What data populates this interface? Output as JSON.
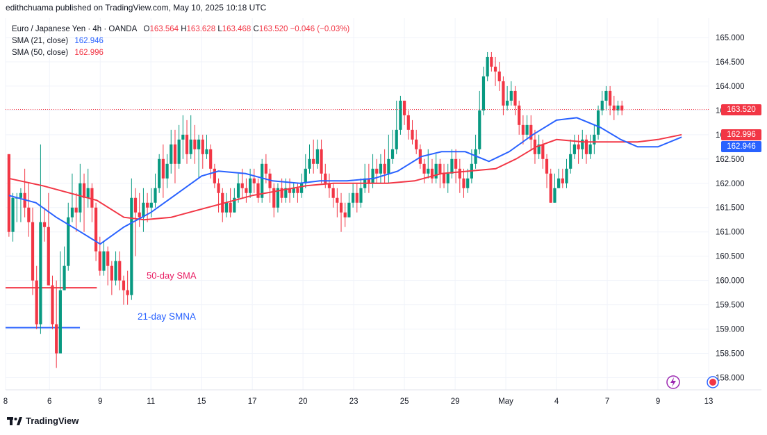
{
  "header": {
    "published_line": "edithchuama published on TradingView.com, May 10, 2025 10:18 UTC"
  },
  "legend": {
    "symbol": "Euro / Japanese Yen · 4h · OANDA",
    "o_label": "O",
    "o_value": "163.564",
    "h_label": "H",
    "h_value": "163.628",
    "l_label": "L",
    "l_value": "163.468",
    "c_label": "C",
    "c_value": "163.520",
    "change": "−0.046 (−0.03%)",
    "sma21_label": "SMA (21, close)",
    "sma21_value": "162.946",
    "sma50_label": "SMA (50, close)",
    "sma50_value": "162.996"
  },
  "annotations": {
    "sma50_text": "50-day SMA",
    "sma21_text": "21-day SMNA"
  },
  "price_tags": {
    "last": "163.520",
    "sma50": "162.996",
    "sma21": "162.946"
  },
  "footer": {
    "brand": "TradingView"
  },
  "colors": {
    "up": "#089981",
    "down": "#f23645",
    "sma21": "#2962ff",
    "sma50": "#f23645",
    "grid": "#f0f3fa"
  },
  "chart_data": {
    "type": "candlestick",
    "title": "Euro / Japanese Yen · 4h · OANDA",
    "y_ticks": [
      "165.000",
      "164.500",
      "164.000",
      "163.500",
      "163.000",
      "162.500",
      "162.000",
      "161.500",
      "161.000",
      "160.500",
      "160.000",
      "159.500",
      "159.000",
      "158.500",
      "158.000"
    ],
    "ylim": [
      157.75,
      165.4
    ],
    "x_ticks": [
      "8",
      "6",
      "9",
      "11",
      "15",
      "17",
      "20",
      "23",
      "25",
      "29",
      "May",
      "4",
      "7",
      "9",
      "13"
    ],
    "x_tick_index": [
      -1,
      12,
      27,
      42,
      57,
      72,
      87,
      102,
      117,
      132,
      147,
      162,
      177,
      192,
      207
    ],
    "x_index_range": [
      -1,
      207
    ],
    "candles": [
      [
        162.6,
        161.0,
        162.6,
        160.9
      ],
      [
        161.0,
        161.7,
        161.8,
        160.8
      ],
      [
        161.7,
        161.7,
        161.8,
        161.2
      ],
      [
        161.7,
        161.8,
        161.9,
        161.2
      ],
      [
        161.8,
        161.5,
        162.3,
        161.3
      ],
      [
        161.5,
        161.2,
        162.0,
        160.9
      ],
      [
        161.2,
        160.0,
        161.5,
        159.7
      ],
      [
        160.0,
        159.1,
        160.3,
        159.0
      ],
      [
        159.1,
        161.2,
        162.8,
        158.9
      ],
      [
        161.2,
        161.1,
        161.5,
        160.8
      ],
      [
        161.1,
        159.9,
        161.8,
        159.9
      ],
      [
        159.9,
        159.1,
        160.1,
        159.0
      ],
      [
        159.1,
        158.5,
        160.0,
        158.2
      ],
      [
        158.5,
        159.8,
        160.6,
        158.5
      ],
      [
        159.8,
        160.3,
        160.7,
        159.8
      ],
      [
        160.3,
        161.3,
        161.6,
        160.2
      ],
      [
        161.3,
        161.5,
        162.2,
        161.2
      ],
      [
        161.5,
        161.4,
        161.8,
        161.0
      ],
      [
        161.4,
        162.0,
        162.4,
        161.2
      ],
      [
        162.0,
        161.7,
        162.2,
        161.0
      ],
      [
        161.7,
        161.9,
        162.3,
        161.5
      ],
      [
        161.9,
        161.5,
        162.0,
        161.2
      ],
      [
        161.5,
        160.6,
        161.6,
        160.4
      ],
      [
        160.6,
        160.2,
        160.9,
        160.1
      ],
      [
        160.2,
        160.6,
        160.8,
        160.1
      ],
      [
        160.6,
        160.3,
        160.7,
        159.9
      ],
      [
        160.3,
        160.0,
        160.4,
        159.7
      ],
      [
        160.0,
        160.4,
        160.6,
        159.9
      ],
      [
        160.4,
        160.0,
        160.6,
        159.8
      ],
      [
        160.0,
        159.8,
        160.1,
        159.5
      ],
      [
        159.8,
        159.7,
        160.2,
        159.5
      ],
      [
        159.7,
        161.7,
        162.1,
        159.6
      ],
      [
        161.7,
        161.4,
        161.9,
        160.5
      ],
      [
        161.4,
        161.3,
        161.8,
        161.1
      ],
      [
        161.3,
        161.6,
        161.9,
        161.0
      ],
      [
        161.6,
        161.5,
        161.8,
        161.2
      ],
      [
        161.5,
        161.6,
        161.9,
        161.3
      ],
      [
        161.6,
        161.9,
        162.2,
        161.5
      ],
      [
        161.9,
        162.5,
        162.6,
        161.8
      ],
      [
        162.5,
        162.1,
        162.8,
        161.7
      ],
      [
        162.1,
        162.4,
        162.6,
        161.9
      ],
      [
        162.4,
        162.8,
        163.1,
        162.2
      ],
      [
        162.8,
        162.4,
        163.1,
        162.0
      ],
      [
        162.4,
        162.9,
        163.2,
        162.3
      ],
      [
        162.9,
        163.0,
        163.4,
        162.5
      ],
      [
        163.0,
        162.6,
        163.3,
        162.4
      ],
      [
        162.6,
        162.9,
        163.4,
        162.5
      ],
      [
        162.9,
        162.7,
        163.2,
        162.4
      ],
      [
        162.7,
        162.9,
        163.0,
        162.1
      ],
      [
        162.9,
        162.6,
        163.0,
        162.3
      ],
      [
        162.6,
        162.7,
        163.0,
        162.5
      ],
      [
        162.7,
        162.3,
        162.8,
        162.1
      ],
      [
        162.3,
        162.0,
        162.4,
        161.9
      ],
      [
        162.0,
        161.8,
        162.1,
        161.4
      ],
      [
        161.8,
        161.4,
        161.9,
        161.2
      ],
      [
        161.4,
        161.6,
        161.8,
        161.3
      ],
      [
        161.6,
        161.4,
        161.9,
        161.3
      ],
      [
        161.4,
        161.7,
        161.9,
        161.4
      ],
      [
        161.7,
        162.0,
        162.2,
        161.6
      ],
      [
        162.0,
        161.9,
        162.3,
        161.7
      ],
      [
        161.9,
        161.8,
        162.1,
        161.6
      ],
      [
        161.8,
        162.1,
        162.3,
        161.7
      ],
      [
        162.1,
        162.0,
        162.3,
        161.8
      ],
      [
        162.0,
        161.7,
        162.1,
        161.6
      ],
      [
        161.7,
        162.4,
        162.5,
        161.6
      ],
      [
        162.4,
        162.2,
        162.6,
        162.0
      ],
      [
        162.2,
        161.9,
        162.3,
        161.6
      ],
      [
        161.9,
        161.5,
        162.0,
        161.3
      ],
      [
        161.5,
        161.9,
        162.0,
        161.4
      ],
      [
        161.9,
        161.7,
        162.1,
        161.6
      ],
      [
        161.7,
        161.9,
        162.1,
        161.6
      ],
      [
        161.9,
        161.8,
        162.1,
        161.6
      ],
      [
        161.8,
        161.9,
        162.0,
        161.7
      ],
      [
        161.9,
        161.8,
        162.0,
        161.6
      ],
      [
        161.8,
        162.0,
        162.2,
        161.7
      ],
      [
        162.0,
        162.3,
        162.6,
        161.9
      ],
      [
        162.3,
        162.5,
        162.8,
        162.2
      ],
      [
        162.5,
        162.4,
        162.9,
        162.2
      ],
      [
        162.4,
        162.7,
        162.9,
        162.3
      ],
      [
        162.7,
        162.2,
        162.9,
        162.0
      ],
      [
        162.2,
        162.0,
        162.4,
        161.9
      ],
      [
        162.0,
        161.9,
        162.2,
        161.7
      ],
      [
        161.9,
        161.7,
        162.0,
        161.5
      ],
      [
        161.7,
        161.6,
        161.9,
        161.3
      ],
      [
        161.6,
        161.4,
        161.8,
        161.0
      ],
      [
        161.4,
        161.3,
        161.6,
        161.1
      ],
      [
        161.3,
        161.6,
        161.8,
        161.3
      ],
      [
        161.6,
        161.8,
        162.0,
        161.5
      ],
      [
        161.8,
        161.6,
        162.0,
        161.4
      ],
      [
        161.6,
        161.9,
        162.1,
        161.5
      ],
      [
        161.9,
        162.1,
        162.4,
        161.8
      ],
      [
        162.1,
        162.0,
        162.4,
        161.8
      ],
      [
        162.0,
        162.3,
        162.6,
        161.9
      ],
      [
        162.3,
        162.2,
        162.5,
        162.0
      ],
      [
        162.2,
        162.4,
        162.6,
        162.0
      ],
      [
        162.4,
        162.2,
        162.7,
        162.0
      ],
      [
        162.2,
        162.5,
        163.0,
        162.0
      ],
      [
        162.5,
        162.7,
        163.1,
        162.4
      ],
      [
        162.7,
        163.1,
        163.7,
        162.6
      ],
      [
        163.1,
        163.7,
        163.8,
        163.0
      ],
      [
        163.7,
        163.4,
        163.7,
        163.2
      ],
      [
        163.4,
        163.1,
        163.5,
        162.9
      ],
      [
        163.1,
        162.9,
        163.3,
        162.8
      ],
      [
        162.9,
        162.7,
        163.1,
        162.6
      ],
      [
        162.7,
        162.4,
        162.8,
        162.3
      ],
      [
        162.4,
        162.2,
        162.5,
        162.0
      ],
      [
        162.2,
        162.3,
        162.7,
        162.1
      ],
      [
        162.3,
        162.1,
        162.5,
        162.0
      ],
      [
        162.1,
        162.4,
        162.6,
        162.0
      ],
      [
        162.4,
        162.2,
        162.5,
        161.9
      ],
      [
        162.2,
        162.0,
        162.4,
        161.9
      ],
      [
        162.0,
        162.2,
        162.4,
        161.8
      ],
      [
        162.2,
        162.5,
        162.7,
        162.1
      ],
      [
        162.5,
        162.3,
        162.7,
        162.0
      ],
      [
        162.3,
        162.1,
        162.5,
        161.8
      ],
      [
        162.1,
        161.9,
        162.3,
        161.7
      ],
      [
        161.9,
        162.1,
        162.3,
        161.8
      ],
      [
        162.1,
        162.4,
        162.7,
        162.0
      ],
      [
        162.4,
        162.7,
        163.0,
        162.3
      ],
      [
        162.7,
        163.5,
        163.9,
        162.6
      ],
      [
        163.5,
        164.2,
        164.4,
        163.4
      ],
      [
        164.2,
        164.6,
        164.7,
        164.1
      ],
      [
        164.6,
        164.4,
        164.7,
        164.3
      ],
      [
        164.4,
        164.3,
        164.6,
        164.0
      ],
      [
        164.3,
        164.1,
        164.5,
        163.9
      ],
      [
        164.1,
        163.6,
        164.2,
        163.4
      ],
      [
        163.6,
        163.7,
        164.0,
        163.5
      ],
      [
        163.7,
        163.9,
        164.1,
        163.6
      ],
      [
        163.9,
        163.6,
        164.0,
        163.4
      ],
      [
        163.6,
        163.2,
        163.7,
        163.0
      ],
      [
        163.2,
        163.0,
        163.4,
        162.8
      ],
      [
        163.0,
        163.2,
        163.4,
        162.9
      ],
      [
        163.2,
        162.9,
        163.4,
        162.7
      ],
      [
        162.9,
        162.6,
        163.1,
        162.4
      ],
      [
        162.6,
        162.8,
        163.0,
        162.5
      ],
      [
        162.8,
        162.5,
        162.9,
        162.3
      ],
      [
        162.5,
        162.2,
        162.6,
        161.9
      ],
      [
        162.2,
        161.6,
        162.3,
        161.6
      ],
      [
        161.6,
        161.9,
        162.2,
        161.6
      ],
      [
        161.9,
        162.1,
        162.3,
        161.9
      ],
      [
        162.1,
        162.0,
        162.3,
        161.9
      ],
      [
        162.0,
        162.3,
        162.5,
        161.9
      ],
      [
        162.3,
        162.6,
        162.9,
        162.2
      ],
      [
        162.6,
        162.8,
        163.0,
        162.5
      ],
      [
        162.8,
        162.7,
        163.0,
        162.4
      ],
      [
        162.7,
        162.9,
        163.1,
        162.5
      ],
      [
        162.9,
        162.6,
        163.0,
        162.4
      ],
      [
        162.6,
        162.8,
        163.0,
        162.5
      ],
      [
        162.8,
        163.0,
        163.2,
        162.6
      ],
      [
        163.0,
        163.5,
        163.6,
        162.9
      ],
      [
        163.5,
        163.7,
        163.9,
        163.4
      ],
      [
        163.7,
        163.9,
        164.0,
        163.5
      ],
      [
        163.9,
        163.6,
        164.0,
        163.4
      ],
      [
        163.6,
        163.5,
        163.8,
        163.3
      ],
      [
        163.5,
        163.6,
        163.7,
        163.4
      ],
      [
        163.6,
        163.5,
        163.7,
        163.4
      ]
    ],
    "candle_index_start": 0,
    "candle_index_step": 1.17,
    "sma21": [
      [
        0,
        161.75
      ],
      [
        8,
        161.6
      ],
      [
        14,
        161.3
      ],
      [
        20,
        161.05
      ],
      [
        27,
        160.75
      ],
      [
        34,
        161.1
      ],
      [
        42,
        161.4
      ],
      [
        50,
        161.8
      ],
      [
        57,
        162.15
      ],
      [
        62,
        162.25
      ],
      [
        70,
        162.2
      ],
      [
        78,
        162.05
      ],
      [
        86,
        162.0
      ],
      [
        92,
        162.05
      ],
      [
        100,
        162.05
      ],
      [
        108,
        162.1
      ],
      [
        115,
        162.25
      ],
      [
        122,
        162.55
      ],
      [
        128,
        162.65
      ],
      [
        135,
        162.65
      ],
      [
        142,
        162.45
      ],
      [
        148,
        162.65
      ],
      [
        155,
        163.0
      ],
      [
        162,
        163.3
      ],
      [
        168,
        163.35
      ],
      [
        175,
        163.15
      ],
      [
        181,
        162.9
      ],
      [
        186,
        162.75
      ],
      [
        192,
        162.75
      ],
      [
        199,
        162.95
      ]
    ],
    "sma50": [
      [
        0,
        162.1
      ],
      [
        10,
        161.95
      ],
      [
        18,
        161.8
      ],
      [
        26,
        161.65
      ],
      [
        34,
        161.3
      ],
      [
        40,
        161.25
      ],
      [
        48,
        161.3
      ],
      [
        56,
        161.45
      ],
      [
        64,
        161.6
      ],
      [
        72,
        161.75
      ],
      [
        80,
        161.85
      ],
      [
        88,
        161.95
      ],
      [
        96,
        162.0
      ],
      [
        104,
        162.0
      ],
      [
        112,
        162.0
      ],
      [
        120,
        162.05
      ],
      [
        128,
        162.2
      ],
      [
        136,
        162.25
      ],
      [
        144,
        162.3
      ],
      [
        150,
        162.5
      ],
      [
        156,
        162.75
      ],
      [
        162,
        162.9
      ],
      [
        170,
        162.85
      ],
      [
        178,
        162.85
      ],
      [
        186,
        162.85
      ],
      [
        192,
        162.9
      ],
      [
        199,
        163.0
      ]
    ],
    "annotation_lines": [
      {
        "name": "50-day SMA",
        "price": 159.85,
        "from_index": -1,
        "to_index": 26,
        "color": "#f23645"
      },
      {
        "name": "21-day SMNA",
        "price": 159.03,
        "from_index": -1,
        "to_index": 21,
        "color": "#2962ff"
      }
    ],
    "last_price_line": 163.52
  }
}
